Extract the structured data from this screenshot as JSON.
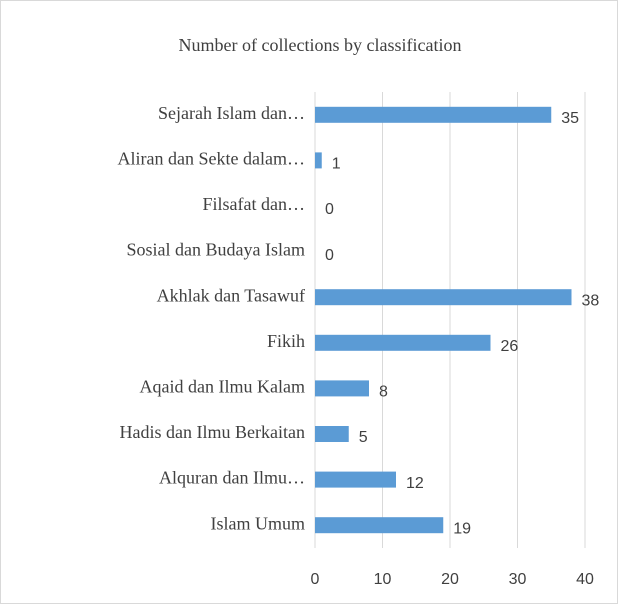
{
  "chart_data": {
    "type": "bar",
    "orientation": "horizontal",
    "title": "Number of collections by classification",
    "categories": [
      "Sejarah Islam dan…",
      "Aliran dan Sekte dalam…",
      "Filsafat dan…",
      "Sosial dan Budaya Islam",
      "Akhlak dan Tasawuf",
      "Fikih",
      "Aqaid dan Ilmu Kalam",
      "Hadis dan Ilmu Berkaitan",
      "Alquran dan Ilmu…",
      "Islam Umum"
    ],
    "values": [
      35,
      1,
      0,
      0,
      38,
      26,
      8,
      5,
      12,
      19
    ],
    "color": "#5b9bd5",
    "xlim": [
      0,
      40
    ],
    "xticks": [
      0,
      10,
      20,
      30,
      40
    ],
    "grid": true
  }
}
